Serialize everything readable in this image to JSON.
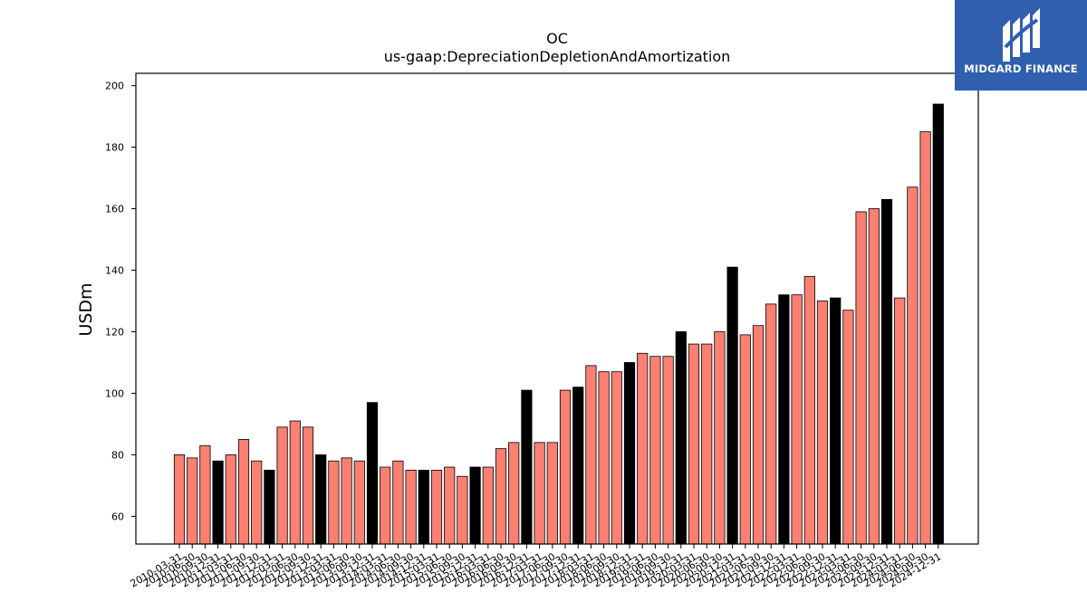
{
  "logo": {
    "text": "MIDGARD FINANCE",
    "color": "#2f5fae"
  },
  "chart_data": {
    "type": "bar",
    "title": "OC",
    "subtitle": "us-gaap:DepreciationDepletionAndAmortization",
    "xlabel": "",
    "ylabel": "USDm",
    "ylim": [
      51,
      204
    ],
    "yticks": [
      60,
      80,
      100,
      120,
      140,
      160,
      180,
      200
    ],
    "grid": false,
    "colors": {
      "quarter": "#fa8072",
      "year_end": "#000000",
      "edge": "#000000"
    },
    "categories": [
      "2010-03-31",
      "2010-06-30",
      "2010-09-30",
      "2010-12-31",
      "2011-03-31",
      "2011-06-30",
      "2011-09-30",
      "2011-12-31",
      "2012-03-31",
      "2012-06-30",
      "2012-09-30",
      "2012-12-31",
      "2013-03-31",
      "2013-06-30",
      "2013-09-30",
      "2013-12-31",
      "2014-03-31",
      "2014-06-30",
      "2014-09-30",
      "2014-12-31",
      "2015-03-31",
      "2015-06-30",
      "2015-09-30",
      "2015-12-31",
      "2016-03-31",
      "2016-06-30",
      "2016-09-30",
      "2016-12-31",
      "2017-03-31",
      "2017-06-30",
      "2017-09-30",
      "2017-12-31",
      "2018-03-31",
      "2018-06-30",
      "2018-09-30",
      "2018-12-31",
      "2019-03-31",
      "2019-06-30",
      "2019-09-30",
      "2019-12-31",
      "2020-03-31",
      "2020-06-30",
      "2020-09-30",
      "2020-12-31",
      "2021-03-31",
      "2021-06-30",
      "2021-09-30",
      "2021-12-31",
      "2022-03-31",
      "2022-06-30",
      "2022-09-30",
      "2022-12-31",
      "2023-03-31",
      "2023-06-30",
      "2023-09-30",
      "2023-12-31",
      "2024-03-31",
      "2024-06-30",
      "2024-09-30",
      "2024-12-31"
    ],
    "values": [
      80,
      79,
      83,
      78,
      80,
      85,
      78,
      75,
      89,
      91,
      89,
      80,
      78,
      79,
      78,
      97,
      76,
      78,
      75,
      75,
      75,
      76,
      73,
      76,
      76,
      82,
      84,
      101,
      84,
      84,
      101,
      102,
      109,
      107,
      107,
      110,
      113,
      112,
      112,
      120,
      116,
      116,
      120,
      141,
      119,
      122,
      129,
      132,
      132,
      138,
      130,
      131,
      127,
      159,
      160,
      163,
      131,
      167,
      185,
      194
    ],
    "year_end_every": 4
  }
}
